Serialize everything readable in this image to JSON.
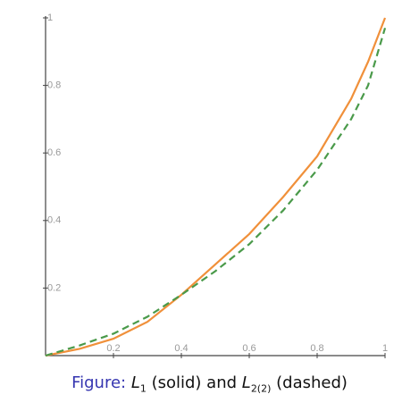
{
  "chart_data": {
    "type": "line",
    "x": [
      0,
      0.1,
      0.2,
      0.3,
      0.4,
      0.5,
      0.6,
      0.7,
      0.8,
      0.9,
      0.95,
      1
    ],
    "series": [
      {
        "name": "L1",
        "color": "#f0903a",
        "dash": false,
        "values": [
          0,
          0.02,
          0.05,
          0.1,
          0.18,
          0.27,
          0.36,
          0.47,
          0.59,
          0.76,
          0.87,
          1
        ]
      },
      {
        "name": "L2(2)",
        "color": "#4a9a4a",
        "dash": true,
        "values": [
          0,
          0.03,
          0.065,
          0.115,
          0.18,
          0.25,
          0.33,
          0.43,
          0.55,
          0.7,
          0.8,
          0.97
        ]
      }
    ],
    "xlim": [
      0,
      1
    ],
    "ylim": [
      0,
      1
    ],
    "xticks": [
      0.2,
      0.4,
      0.6,
      0.8,
      1
    ],
    "yticks": [
      0.2,
      0.4,
      0.6,
      0.8,
      1
    ],
    "caption": {
      "prefix": "Figure:",
      "l1": "L",
      "l1_sub": "1",
      "middle": "(solid) and",
      "l2": "L",
      "l2_sub": "2(2)",
      "suffix": "(dashed)"
    }
  }
}
